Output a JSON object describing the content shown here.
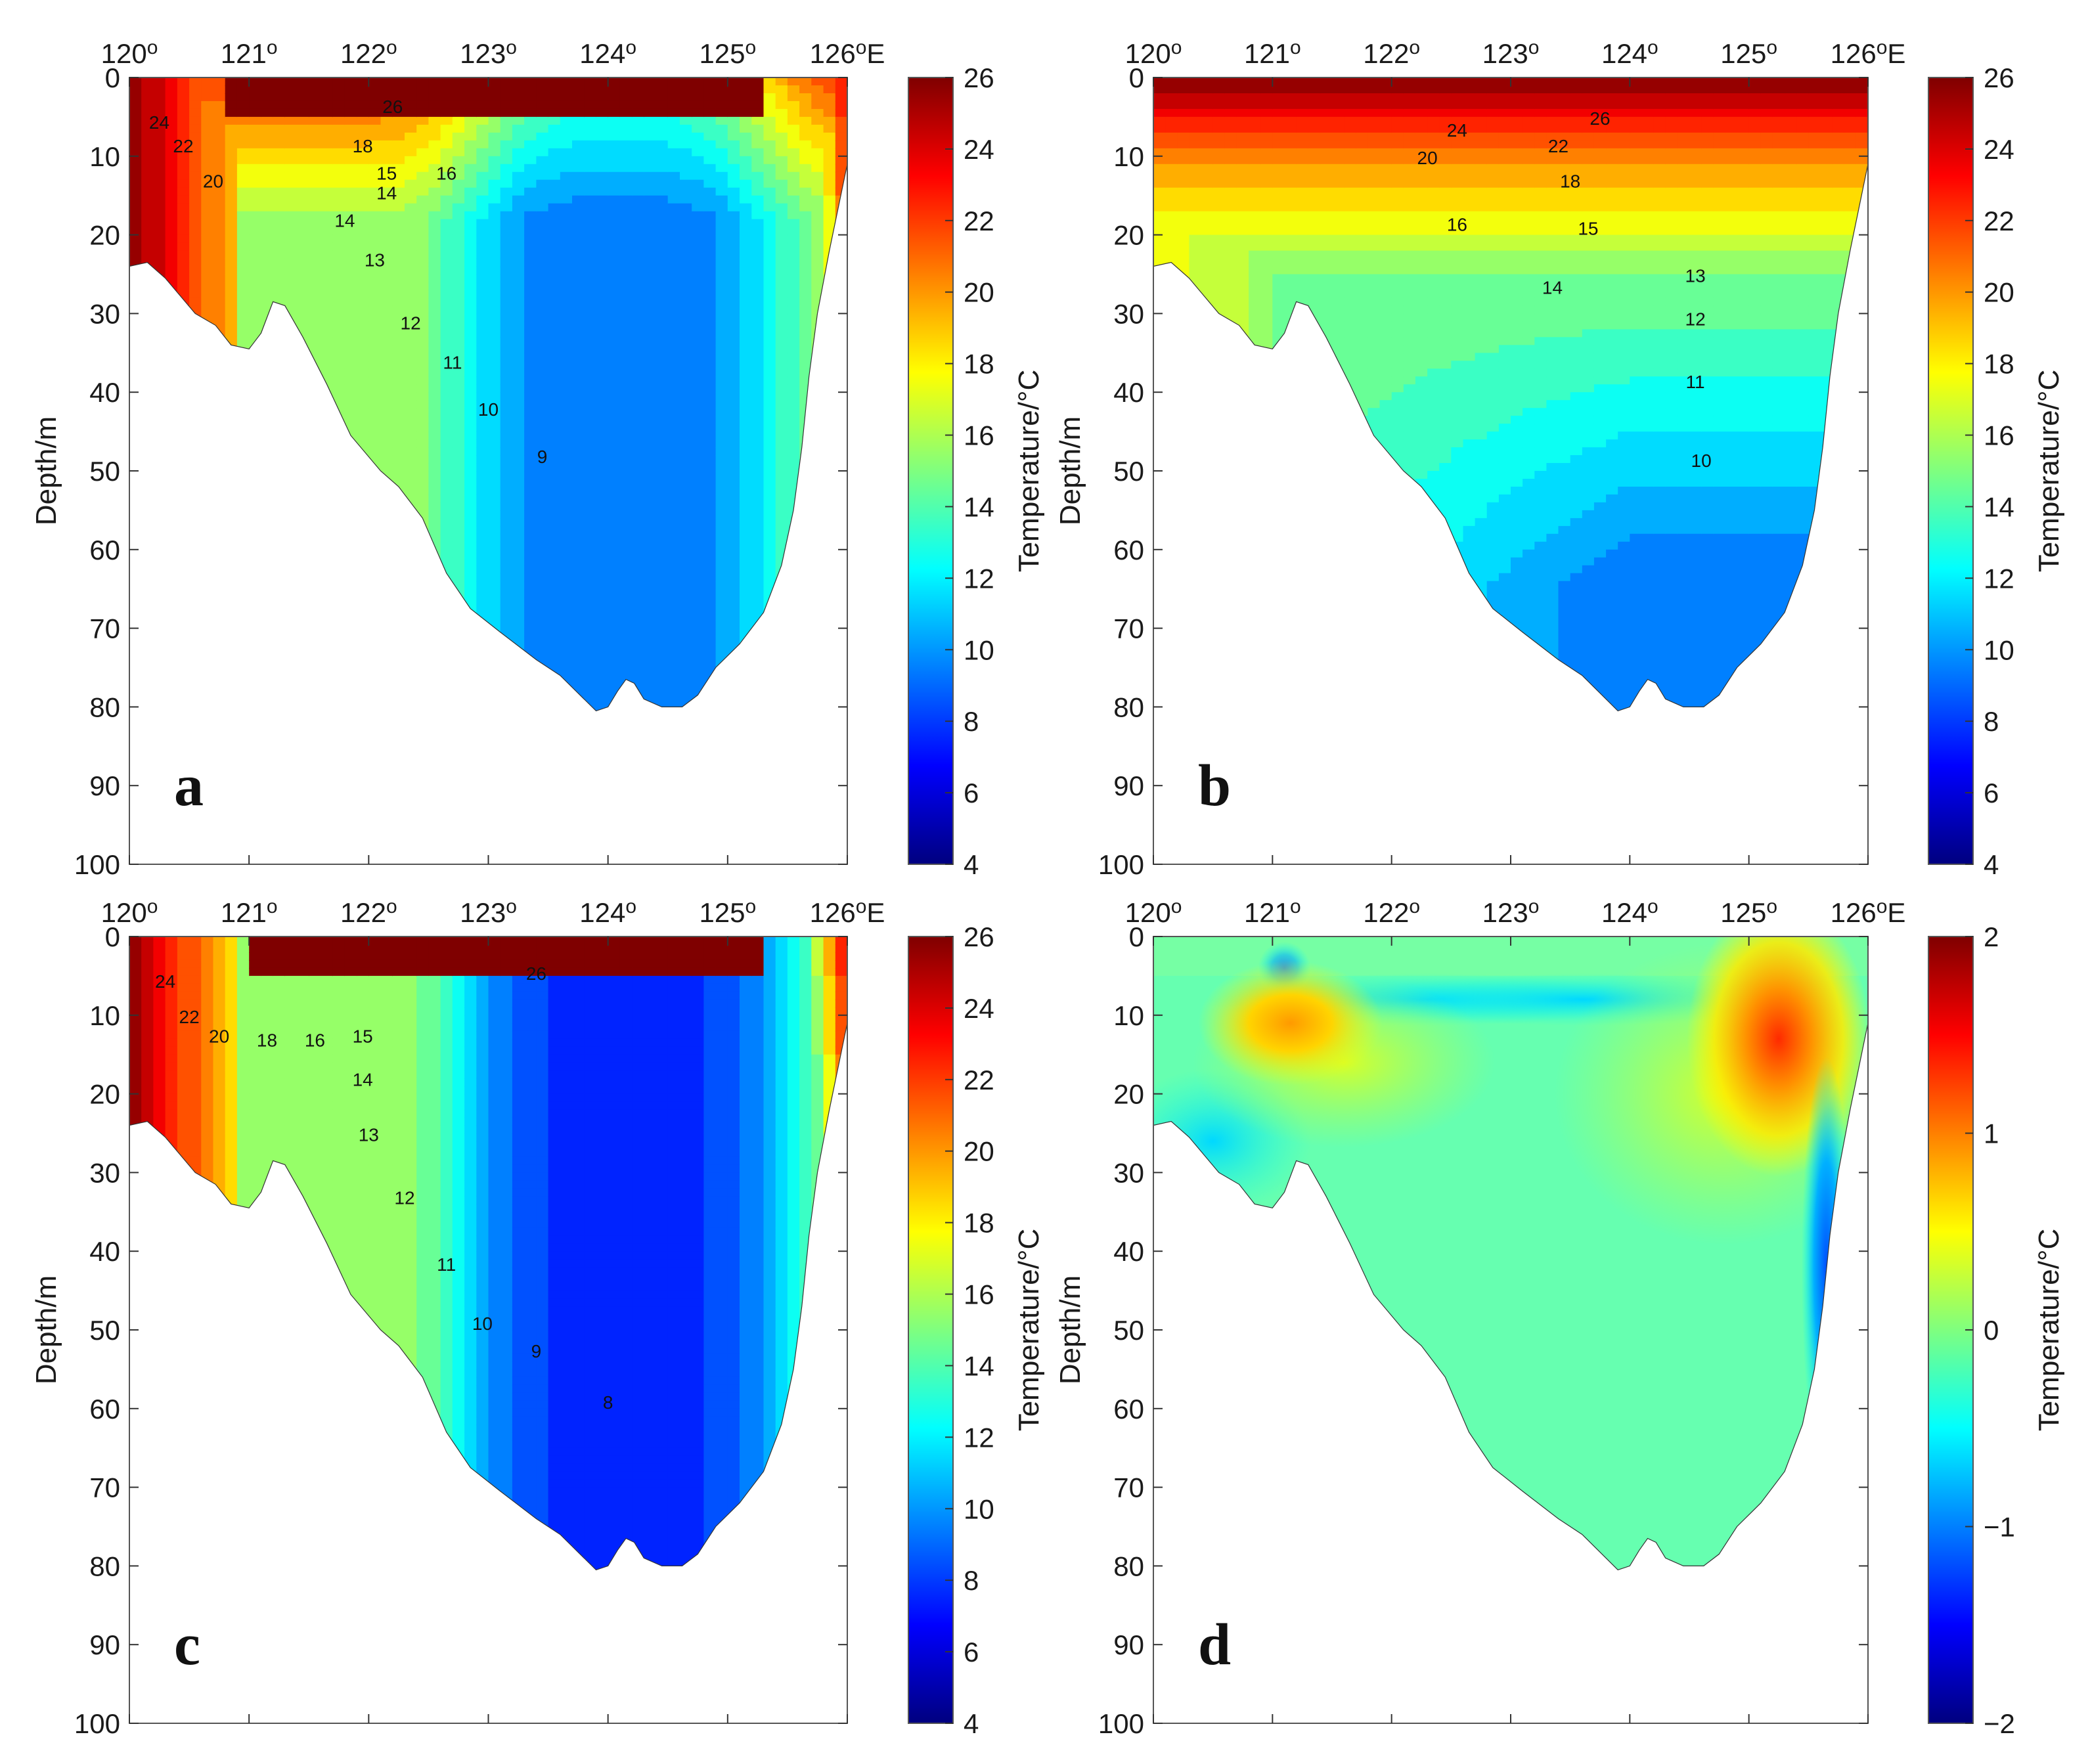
{
  "chart_data": [
    {
      "type": "heatmap",
      "panel": "a",
      "panel_label": "a",
      "x_ticks": [
        "120",
        "121",
        "122",
        "123",
        "124",
        "125",
        "126"
      ],
      "x_tick_suffix": "o",
      "x_end_suffix": "E",
      "xlim": [
        120,
        126
      ],
      "ylabel": "Depth/m",
      "y_ticks": [
        "0",
        "10",
        "20",
        "30",
        "40",
        "50",
        "60",
        "70",
        "80",
        "90",
        "100"
      ],
      "ylim": [
        0,
        100
      ],
      "colorbar": {
        "label": "Temperature/°C",
        "range": [
          4,
          26
        ],
        "ticks": [
          "4",
          "6",
          "8",
          "10",
          "12",
          "14",
          "16",
          "18",
          "20",
          "22",
          "24",
          "26"
        ]
      },
      "contour_labels": [
        {
          "text": "26",
          "lon": 122.2,
          "depth": 4.5
        },
        {
          "text": "24",
          "lon": 120.25,
          "depth": 6.5
        },
        {
          "text": "22",
          "lon": 120.45,
          "depth": 9.5
        },
        {
          "text": "20",
          "lon": 120.7,
          "depth": 14
        },
        {
          "text": "18",
          "lon": 121.95,
          "depth": 9.5
        },
        {
          "text": "15",
          "lon": 122.15,
          "depth": 13
        },
        {
          "text": "16",
          "lon": 122.65,
          "depth": 13
        },
        {
          "text": "14",
          "lon": 122.15,
          "depth": 15.5
        },
        {
          "text": "14",
          "lon": 121.8,
          "depth": 19
        },
        {
          "text": "13",
          "lon": 122.05,
          "depth": 24
        },
        {
          "text": "12",
          "lon": 122.35,
          "depth": 32
        },
        {
          "text": "11",
          "lon": 122.7,
          "depth": 37
        },
        {
          "text": "10",
          "lon": 123.0,
          "depth": 43
        },
        {
          "text": "9",
          "lon": 123.45,
          "depth": 49
        }
      ]
    },
    {
      "type": "heatmap",
      "panel": "b",
      "panel_label": "b",
      "x_ticks": [
        "120",
        "121",
        "122",
        "123",
        "124",
        "125",
        "126"
      ],
      "x_tick_suffix": "o",
      "x_end_suffix": "E",
      "xlim": [
        120,
        126
      ],
      "ylabel": "Depth/m",
      "y_ticks": [
        "0",
        "10",
        "20",
        "30",
        "40",
        "50",
        "60",
        "70",
        "80",
        "90",
        "100"
      ],
      "ylim": [
        0,
        100
      ],
      "colorbar": {
        "label": "Temperature/°C",
        "range": [
          4,
          26
        ],
        "ticks": [
          "4",
          "6",
          "8",
          "10",
          "12",
          "14",
          "16",
          "18",
          "20",
          "22",
          "24",
          "26"
        ]
      },
      "contour_labels": [
        {
          "text": "26",
          "lon": 123.75,
          "depth": 6
        },
        {
          "text": "24",
          "lon": 122.55,
          "depth": 7.5
        },
        {
          "text": "22",
          "lon": 123.4,
          "depth": 9.5
        },
        {
          "text": "20",
          "lon": 122.3,
          "depth": 11
        },
        {
          "text": "18",
          "lon": 123.5,
          "depth": 14
        },
        {
          "text": "16",
          "lon": 122.55,
          "depth": 19.5
        },
        {
          "text": "15",
          "lon": 123.65,
          "depth": 20
        },
        {
          "text": "14",
          "lon": 123.35,
          "depth": 27.5
        },
        {
          "text": "13",
          "lon": 124.55,
          "depth": 26
        },
        {
          "text": "12",
          "lon": 124.55,
          "depth": 31.5
        },
        {
          "text": "11",
          "lon": 124.55,
          "depth": 39.5
        },
        {
          "text": "10",
          "lon": 124.6,
          "depth": 49.5
        }
      ]
    },
    {
      "type": "heatmap",
      "panel": "c",
      "panel_label": "c",
      "x_ticks": [
        "120",
        "121",
        "122",
        "123",
        "124",
        "125",
        "126"
      ],
      "x_tick_suffix": "o",
      "x_end_suffix": "E",
      "xlim": [
        120,
        126
      ],
      "ylabel": "Depth/m",
      "y_ticks": [
        "0",
        "10",
        "20",
        "30",
        "40",
        "50",
        "60",
        "70",
        "80",
        "90",
        "100"
      ],
      "ylim": [
        0,
        100
      ],
      "colorbar": {
        "label": "Temperature/°C",
        "range": [
          4,
          26
        ],
        "ticks": [
          "4",
          "6",
          "8",
          "10",
          "12",
          "14",
          "16",
          "18",
          "20",
          "22",
          "24",
          "26"
        ]
      },
      "contour_labels": [
        {
          "text": "26",
          "lon": 123.4,
          "depth": 5.5
        },
        {
          "text": "24",
          "lon": 120.3,
          "depth": 6.5
        },
        {
          "text": "22",
          "lon": 120.5,
          "depth": 11
        },
        {
          "text": "20",
          "lon": 120.75,
          "depth": 13.5
        },
        {
          "text": "18",
          "lon": 121.15,
          "depth": 14
        },
        {
          "text": "16",
          "lon": 121.55,
          "depth": 14
        },
        {
          "text": "15",
          "lon": 121.95,
          "depth": 13.5
        },
        {
          "text": "14",
          "lon": 121.95,
          "depth": 19
        },
        {
          "text": "13",
          "lon": 122.0,
          "depth": 26
        },
        {
          "text": "12",
          "lon": 122.3,
          "depth": 34
        },
        {
          "text": "11",
          "lon": 122.65,
          "depth": 42.5
        },
        {
          "text": "10",
          "lon": 122.95,
          "depth": 50
        },
        {
          "text": "9",
          "lon": 123.4,
          "depth": 53.5
        },
        {
          "text": "8",
          "lon": 124.0,
          "depth": 60
        }
      ]
    },
    {
      "type": "heatmap",
      "panel": "d",
      "panel_label": "d",
      "x_ticks": [
        "120",
        "121",
        "122",
        "123",
        "124",
        "125",
        "126"
      ],
      "x_tick_suffix": "o",
      "x_end_suffix": "E",
      "xlim": [
        120,
        126
      ],
      "ylabel": "Depth/m",
      "y_ticks": [
        "0",
        "10",
        "20",
        "30",
        "40",
        "50",
        "60",
        "70",
        "80",
        "90",
        "100"
      ],
      "ylim": [
        0,
        100
      ],
      "colorbar": {
        "label": "Temperature/°C",
        "range": [
          -2,
          2
        ],
        "ticks": [
          "−2",
          "−1",
          "0",
          "1",
          "2"
        ]
      },
      "contour_labels": []
    }
  ],
  "colors": {
    "jet": [
      "#00007f",
      "#0000ff",
      "#007fff",
      "#00ffff",
      "#7fff7f",
      "#ffff00",
      "#ff7f00",
      "#ff0000",
      "#7f0000"
    ]
  }
}
